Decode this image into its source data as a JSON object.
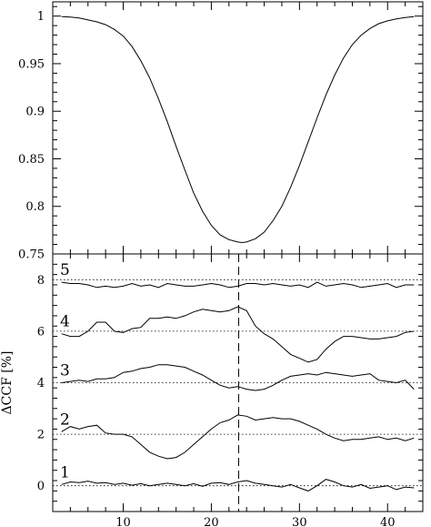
{
  "chart_data": [
    {
      "type": "line",
      "panel": "top",
      "title": "",
      "xlabel": "",
      "ylabel": "",
      "xlim": [
        2,
        44
      ],
      "ylim": [
        0.75,
        1.015
      ],
      "x_ticks": [
        10,
        20,
        30,
        40
      ],
      "y_ticks": [
        0.75,
        0.8,
        0.85,
        0.9,
        0.95,
        1.0
      ],
      "y_tick_labels": [
        "0.75",
        "0.8",
        "0.85",
        "0.9",
        "0.95",
        "1"
      ],
      "grid": false,
      "series": [
        {
          "x": [
            3,
            4,
            5,
            6,
            7,
            8,
            9,
            10,
            11,
            12,
            13,
            14,
            15,
            16,
            17,
            18,
            19,
            20,
            21,
            22,
            23,
            23.5,
            24,
            25,
            26,
            27,
            28,
            29,
            30,
            31,
            32,
            33,
            34,
            35,
            36,
            37,
            38,
            39,
            40,
            41,
            42,
            43
          ],
          "y": [
            0.9995,
            0.999,
            0.998,
            0.996,
            0.994,
            0.991,
            0.986,
            0.979,
            0.968,
            0.953,
            0.935,
            0.913,
            0.889,
            0.863,
            0.838,
            0.814,
            0.795,
            0.78,
            0.77,
            0.765,
            0.7625,
            0.762,
            0.7625,
            0.766,
            0.773,
            0.785,
            0.8,
            0.82,
            0.843,
            0.868,
            0.893,
            0.917,
            0.938,
            0.956,
            0.97,
            0.98,
            0.987,
            0.992,
            0.995,
            0.997,
            0.9985,
            0.9995
          ]
        }
      ]
    },
    {
      "type": "line",
      "panel": "bottom",
      "title": "",
      "xlabel": "",
      "ylabel": "ΔCCF [%]",
      "xlim": [
        2,
        44
      ],
      "ylim": [
        -1,
        9
      ],
      "x_ticks": [
        10,
        20,
        30,
        40
      ],
      "y_ticks": [
        0,
        2,
        4,
        6,
        8
      ],
      "y_tick_labels": [
        "0",
        "2",
        "4",
        "6",
        "8"
      ],
      "vertical_marker_x": 23.1,
      "reference_lines": [
        0,
        2,
        4,
        6,
        8
      ],
      "grid": false,
      "series": [
        {
          "label": "1",
          "x": [
            3,
            4,
            5,
            6,
            7,
            8,
            9,
            10,
            11,
            12,
            13,
            14,
            15,
            16,
            17,
            18,
            19,
            20,
            21,
            22,
            23,
            24,
            25,
            26,
            27,
            28,
            29,
            30,
            31,
            32,
            33,
            34,
            35,
            36,
            37,
            38,
            39,
            40,
            41,
            42,
            43
          ],
          "y": [
            0.05,
            0.15,
            0.12,
            0.18,
            0.1,
            0.12,
            0.05,
            0.1,
            0.02,
            0.08,
            0.0,
            0.05,
            0.1,
            0.05,
            0.0,
            0.08,
            -0.02,
            0.1,
            0.12,
            0.05,
            0.15,
            0.2,
            0.1,
            0.05,
            0.0,
            -0.05,
            0.05,
            -0.08,
            -0.2,
            0.0,
            0.25,
            0.15,
            0.0,
            -0.05,
            0.05,
            -0.1,
            -0.05,
            0.0,
            -0.15,
            -0.05,
            -0.08
          ]
        },
        {
          "label": "2",
          "x": [
            3,
            4,
            5,
            6,
            7,
            8,
            9,
            10,
            11,
            12,
            13,
            14,
            15,
            16,
            17,
            18,
            19,
            20,
            21,
            22,
            23,
            24,
            25,
            26,
            27,
            28,
            29,
            30,
            31,
            32,
            33,
            34,
            35,
            36,
            37,
            38,
            39,
            40,
            41,
            42,
            43
          ],
          "y": [
            2.1,
            2.3,
            2.2,
            2.3,
            2.35,
            2.05,
            2.0,
            2.0,
            1.9,
            1.6,
            1.3,
            1.15,
            1.05,
            1.1,
            1.3,
            1.6,
            1.9,
            2.2,
            2.45,
            2.55,
            2.75,
            2.7,
            2.55,
            2.6,
            2.65,
            2.6,
            2.6,
            2.5,
            2.35,
            2.2,
            2.0,
            1.85,
            1.75,
            1.8,
            1.8,
            1.85,
            1.9,
            1.8,
            1.85,
            1.75,
            1.85
          ]
        },
        {
          "label": "3",
          "x": [
            3,
            4,
            5,
            6,
            7,
            8,
            9,
            10,
            11,
            12,
            13,
            14,
            15,
            16,
            17,
            18,
            19,
            20,
            21,
            22,
            23,
            24,
            25,
            26,
            27,
            28,
            29,
            30,
            31,
            32,
            33,
            34,
            35,
            36,
            37,
            38,
            39,
            40,
            41,
            42,
            43
          ],
          "y": [
            4.0,
            4.05,
            4.1,
            4.05,
            4.15,
            4.15,
            4.2,
            4.4,
            4.45,
            4.55,
            4.6,
            4.7,
            4.7,
            4.65,
            4.6,
            4.45,
            4.3,
            4.1,
            3.9,
            3.8,
            3.85,
            3.75,
            3.7,
            3.75,
            3.9,
            4.1,
            4.25,
            4.3,
            4.35,
            4.3,
            4.4,
            4.35,
            4.3,
            4.25,
            4.3,
            4.35,
            4.1,
            4.05,
            4.0,
            4.1,
            3.75
          ]
        },
        {
          "label": "4",
          "x": [
            3,
            4,
            5,
            6,
            7,
            8,
            9,
            10,
            11,
            12,
            13,
            14,
            15,
            16,
            17,
            18,
            19,
            20,
            21,
            22,
            23,
            24,
            25,
            26,
            27,
            28,
            29,
            30,
            31,
            32,
            33,
            34,
            35,
            36,
            37,
            38,
            39,
            40,
            41,
            42,
            43
          ],
          "y": [
            5.9,
            5.8,
            5.8,
            6.0,
            6.35,
            6.35,
            6.0,
            5.95,
            6.1,
            6.15,
            6.5,
            6.5,
            6.55,
            6.5,
            6.6,
            6.75,
            6.85,
            6.8,
            6.75,
            6.8,
            6.95,
            6.8,
            6.2,
            5.9,
            5.7,
            5.4,
            5.1,
            4.95,
            4.8,
            4.9,
            5.3,
            5.6,
            5.8,
            5.8,
            5.75,
            5.7,
            5.7,
            5.75,
            5.8,
            5.95,
            6.0
          ]
        },
        {
          "label": "5",
          "x": [
            3,
            4,
            5,
            6,
            7,
            8,
            9,
            10,
            11,
            12,
            13,
            14,
            15,
            16,
            17,
            18,
            19,
            20,
            21,
            22,
            23,
            24,
            25,
            26,
            27,
            28,
            29,
            30,
            31,
            32,
            33,
            34,
            35,
            36,
            37,
            38,
            39,
            40,
            41,
            42,
            43
          ],
          "y": [
            7.9,
            7.85,
            7.85,
            7.8,
            7.7,
            7.75,
            7.7,
            7.75,
            7.85,
            7.75,
            7.8,
            7.7,
            7.85,
            7.8,
            7.75,
            7.75,
            7.8,
            7.85,
            7.8,
            7.7,
            7.75,
            7.85,
            7.85,
            7.8,
            7.85,
            7.8,
            7.75,
            7.8,
            7.7,
            7.9,
            7.75,
            7.8,
            7.85,
            7.8,
            7.7,
            7.75,
            7.8,
            7.85,
            7.7,
            7.8,
            7.8
          ]
        }
      ]
    }
  ]
}
